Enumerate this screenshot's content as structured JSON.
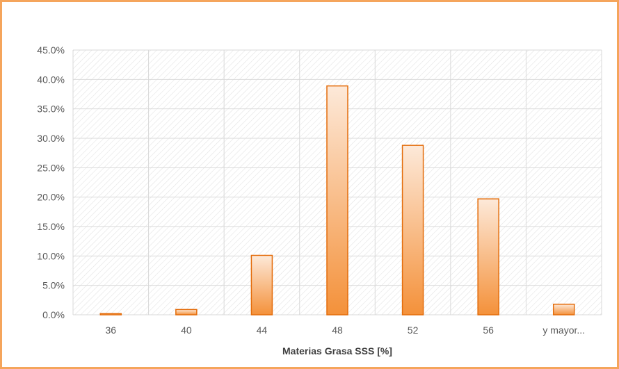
{
  "chart_data": {
    "type": "bar",
    "title": "",
    "xlabel": "Materias Grasa SSS [%]",
    "ylabel": "",
    "categories": [
      "36",
      "40",
      "44",
      "48",
      "52",
      "56",
      "y mayor..."
    ],
    "values": [
      0.2,
      0.9,
      10.1,
      38.9,
      28.8,
      19.7,
      1.8
    ],
    "ylim": [
      0,
      45
    ],
    "yticks": [
      "0.0%",
      "5.0%",
      "10.0%",
      "15.0%",
      "20.0%",
      "25.0%",
      "30.0%",
      "35.0%",
      "40.0%",
      "45.0%"
    ],
    "ytick_values": [
      0,
      5,
      10,
      15,
      20,
      25,
      30,
      35,
      40,
      45
    ],
    "grid": true,
    "legend": "none",
    "colors": {
      "bar_top": "#fde9d9",
      "bar_bottom": "#f4913a",
      "bar_stroke": "#e46c0a",
      "frame": "#f5a55c",
      "grid": "#d9d9d9",
      "hatch": "#e3e3e3"
    }
  }
}
